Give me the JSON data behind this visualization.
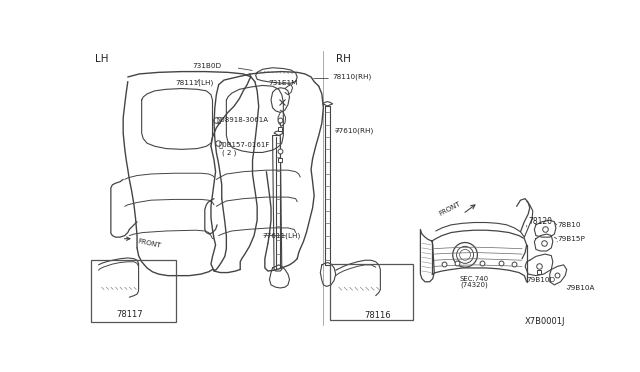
{
  "bg": "#ffffff",
  "lc": "#444444",
  "tc": "#222222",
  "lh_label": "LH",
  "rh_label": "RH",
  "footer": "X7B0001J",
  "figsize": [
    6.4,
    3.72
  ],
  "dpi": 100
}
